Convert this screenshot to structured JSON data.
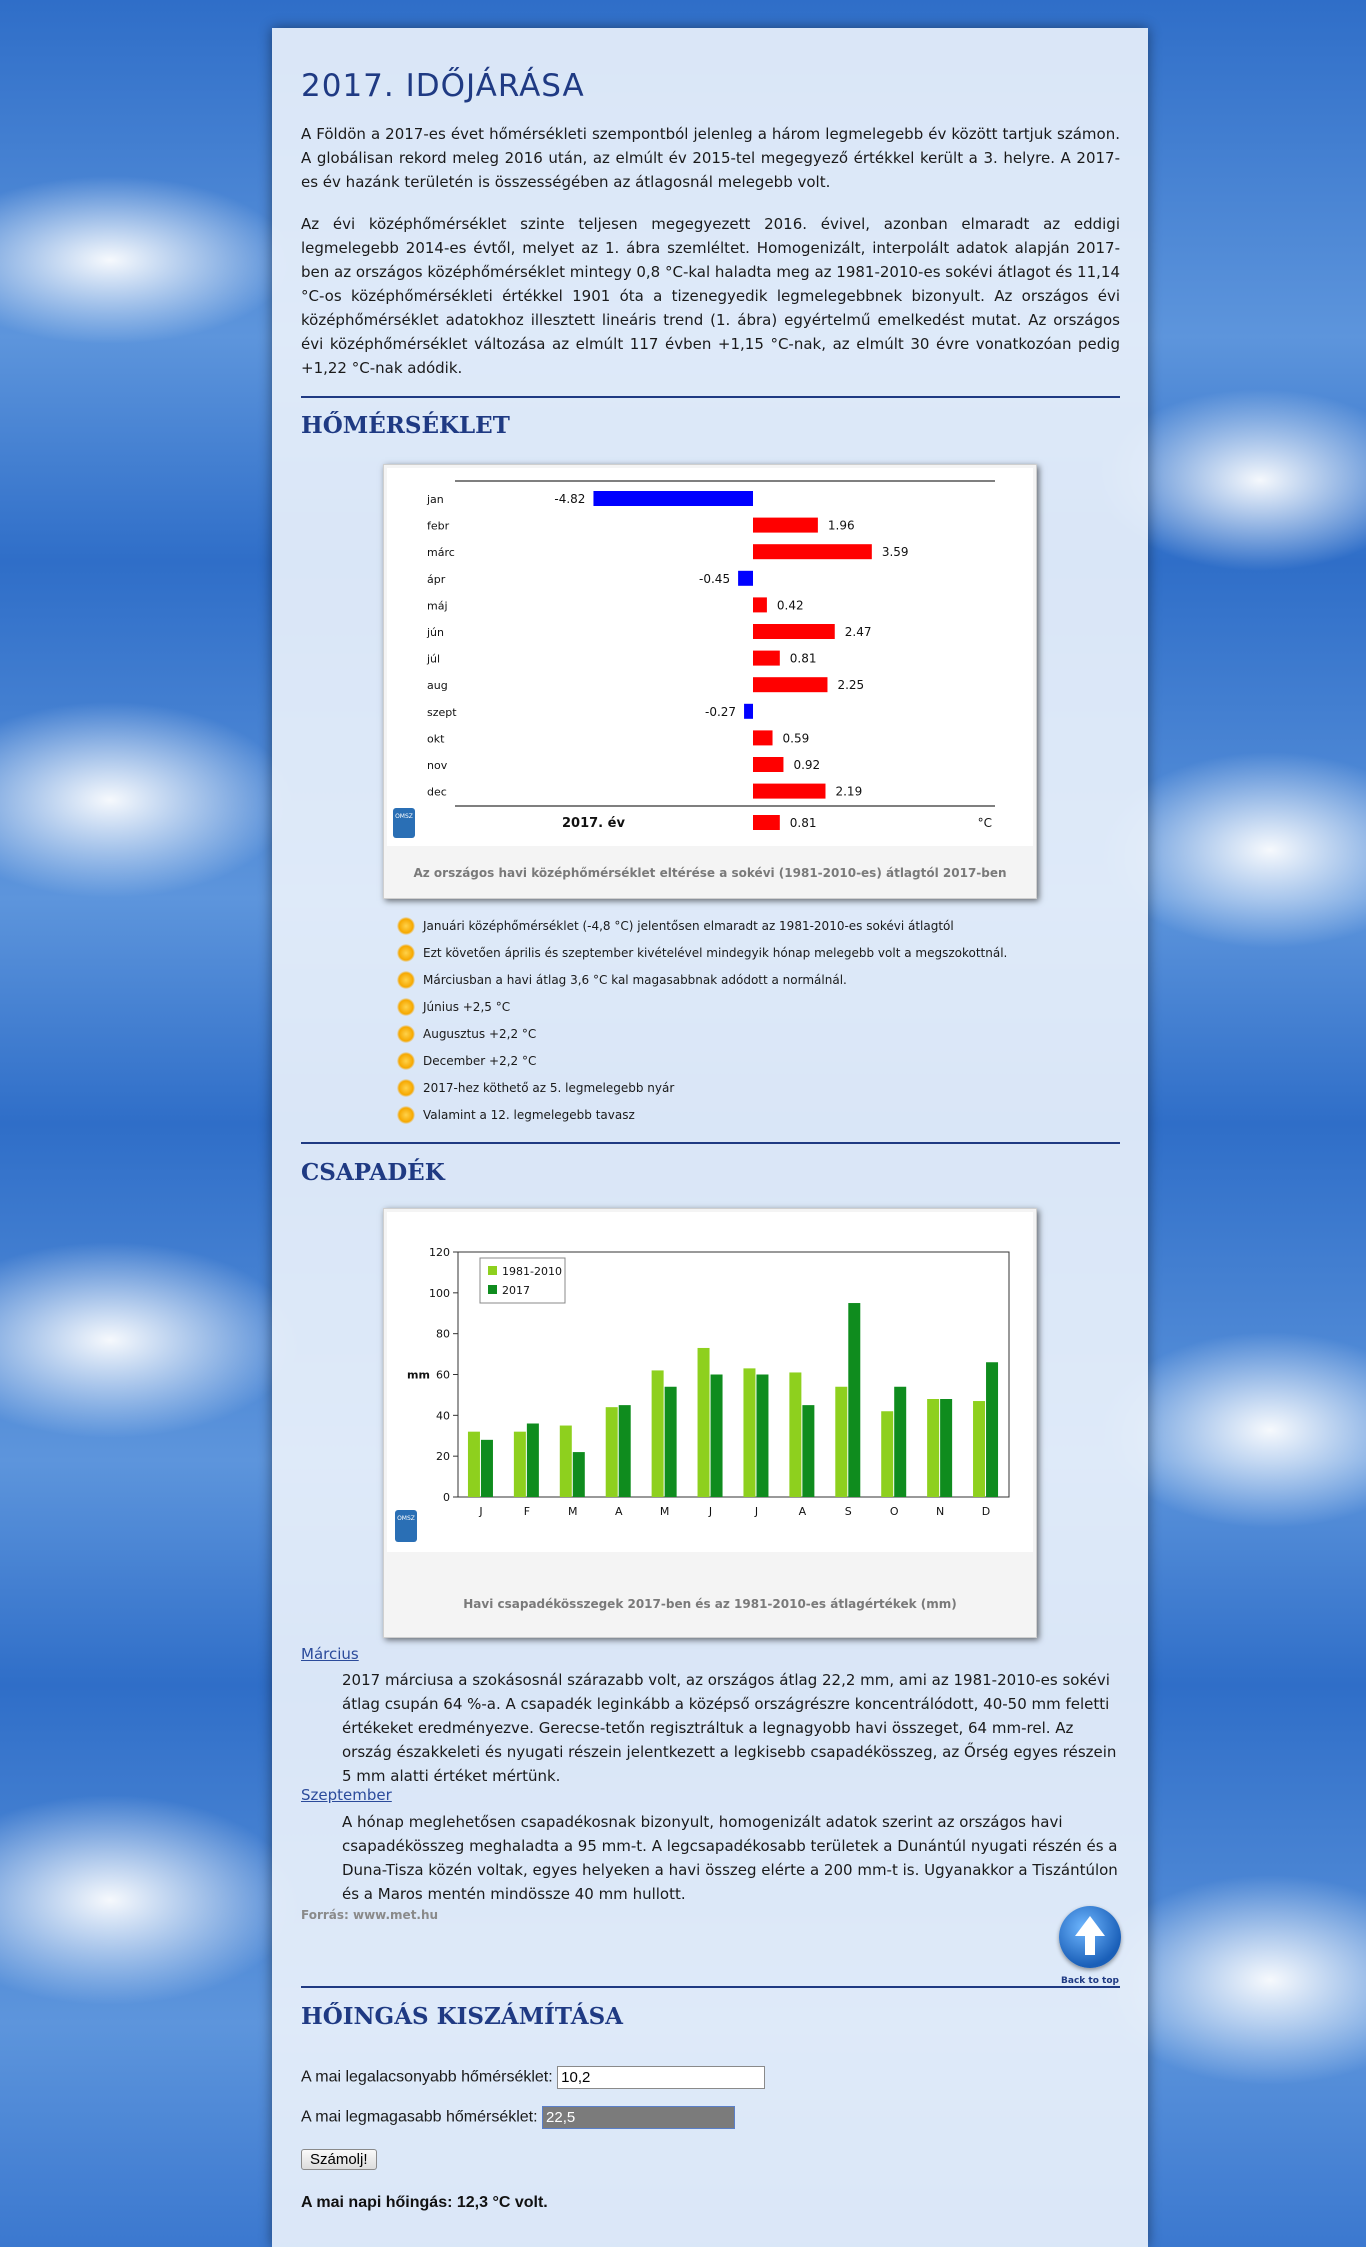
{
  "title": "2017. IDŐJÁRÁSA",
  "intro": [
    "A Földön a 2017-es évet hőmérsékleti szempontból jelenleg a három legmelegebb év között tartjuk számon. A globálisan rekord meleg 2016 után, az elmúlt év 2015-tel megegyező értékkel került a 3. helyre. A 2017-es év hazánk területén is összességében az átlagosnál melegebb volt.",
    "Az évi középhőmérséklet szinte teljesen megegyezett 2016. évivel, azonban elmaradt az eddigi legmelegebb 2014-es évtől, melyet az 1. ábra szemléltet. Homogenizált, interpolált adatok alapján 2017-ben az országos középhőmérséklet mintegy 0,8 °C-kal haladta meg az 1981-2010-es sokévi átlagot és 11,14 °C-os középhőmérsékleti értékkel 1901 óta a tizenegyedik legmelegebbnek bizonyult. Az országos évi középhőmérséklet adatokhoz illesztett lineáris trend (1. ábra) egyértelmű emelkedést mutat. Az országos évi középhőmérséklet változása az elmúlt 117 évben +1,15 °C-nak, az elmúlt 30 évre vonatkozóan pedig +1,22 °C-nak adódik."
  ],
  "section_temp": "HŐMÉRSÉKLET",
  "temp_figure": {
    "caption": "Az országos havi középhőmérséklet eltérése a sokévi (1981-2010-es) átlagtól 2017-ben",
    "logo_text": "OMSZ",
    "year_label": "2017. év",
    "unit": "°C"
  },
  "temp_bullets": [
    "Januári középhőmérséklet (-4,8 °C) jelentősen elmaradt az 1981-2010-es sokévi átlagtól",
    "Ezt követően április és szeptember kivételével mindegyik hónap melegebb volt a megszokottnál.",
    "Márciusban a havi átlag 3,6 °C kal magasabbnak adódott a normálnál.",
    "Június +2,5 °C",
    "Augusztus +2,2 °C",
    "December +2,2 °C",
    "2017-hez köthető az 5. legmelegebb nyár",
    "Valamint a 12. legmelegebb tavasz"
  ],
  "section_precip": "CSAPADÉK",
  "precip_figure": {
    "caption": "Havi csapadékösszegek 2017-ben és az 1981-2010-es átlagértékek (mm)",
    "logo_text": "OMSZ"
  },
  "precip_notes": [
    {
      "term": "Március",
      "text": "2017 márciusa a szokásosnál szárazabb volt, az országos átlag 22,2 mm, ami az 1981-2010-es sokévi átlag csupán 64 %-a. A csapadék leginkább a középső országrészre koncentrálódott, 40-50 mm feletti értékeket eredményezve. Gerecse-tetőn regisztráltuk a legnagyobb havi összeget, 64 mm-rel. Az ország északkeleti és nyugati részein jelentkezett a legkisebb csapadékösszeg, az Őrség egyes részein 5 mm alatti értéket mértünk."
    },
    {
      "term": "Szeptember",
      "text": "A hónap meglehetősen csapadékosnak bizonyult, homogenizált adatok szerint az országos havi csapadékösszeg meghaladta a 95 mm-t. A legcsapadékosabb területek a Dunántúl nyugati részén és a Duna-Tisza közén voltak, egyes helyeken a havi összeg elérte a 200 mm-t is. Ugyanakkor a Tiszántúlon és a Maros mentén mindössze 40 mm hullott."
    }
  ],
  "source": "Forrás: www.met.hu",
  "back_to_top": "Back to top",
  "section_calc": "HŐINGÁS KISZÁMÍTÁSA",
  "calc": {
    "min_label": "A mai legalacsonyabb hőmérséklet:",
    "min_value": "10,2",
    "max_label": "A mai legmagasabb hőmérséklet:",
    "max_value": "22,5",
    "button": "Számolj!",
    "result_label": "A mai napi hőingás:",
    "result_value": "12,3 °C volt."
  },
  "colors": {
    "heading": "#1f3a83",
    "warm": "#ff0000",
    "cold": "#0000ff",
    "avg_bar": "#8ed01e",
    "y2017_bar": "#0f8c1e"
  },
  "chart_data": [
    {
      "type": "bar",
      "orientation": "horizontal",
      "categories": [
        "jan",
        "febr",
        "márc",
        "ápr",
        "máj",
        "jún",
        "júl",
        "aug",
        "szept",
        "okt",
        "nov",
        "dec",
        "2017. év"
      ],
      "values": [
        -4.82,
        1.96,
        3.59,
        -0.45,
        0.42,
        2.47,
        0.81,
        2.25,
        -0.27,
        0.59,
        0.92,
        2.19,
        0.81
      ],
      "title": "",
      "xlabel": "°C",
      "grid": false
    },
    {
      "type": "bar",
      "categories": [
        "J",
        "F",
        "M",
        "A",
        "M",
        "J",
        "J",
        "A",
        "S",
        "O",
        "N",
        "D"
      ],
      "series": [
        {
          "name": "1981-2010",
          "values": [
            32,
            32,
            35,
            44,
            62,
            73,
            63,
            61,
            54,
            42,
            48,
            47
          ]
        },
        {
          "name": "2017",
          "values": [
            28,
            36,
            22,
            45,
            54,
            60,
            60,
            45,
            95,
            54,
            48,
            66
          ]
        }
      ],
      "ylabel": "mm",
      "ylim": [
        0,
        120
      ],
      "yticks": [
        0,
        20,
        40,
        60,
        80,
        100,
        120
      ],
      "grid": false,
      "legend": "top-left"
    }
  ]
}
